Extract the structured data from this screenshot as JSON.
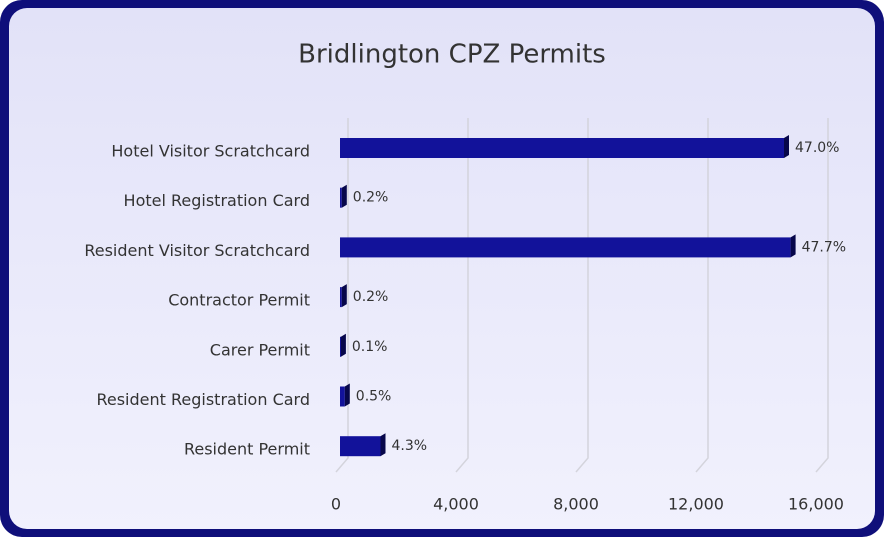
{
  "chart_data": {
    "type": "bar",
    "orientation": "horizontal",
    "title": "Bridlington CPZ Permits",
    "categories": [
      "Hotel Visitor Scratchcard",
      "Hotel Registration Card",
      "Resident Visitor Scratchcard",
      "Contractor Permit",
      "Carer Permit",
      "Resident Registration Card",
      "Resident Permit"
    ],
    "values": [
      14800,
      60,
      15020,
      60,
      30,
      160,
      1350
    ],
    "value_labels": [
      "47.0%",
      "0.2%",
      "47.7%",
      "0.2%",
      "0.1%",
      "0.5%",
      "4.3%"
    ],
    "color": "#12129a",
    "xlim": [
      0,
      16000
    ],
    "xticks": [
      0,
      {
        "value": 4000,
        "label": "4,000"
      },
      {
        "value": 8000,
        "label": "8,000"
      },
      {
        "value": 12000,
        "label": "12,000"
      },
      {
        "value": 16000,
        "label": "16,000"
      }
    ],
    "grid": true
  }
}
